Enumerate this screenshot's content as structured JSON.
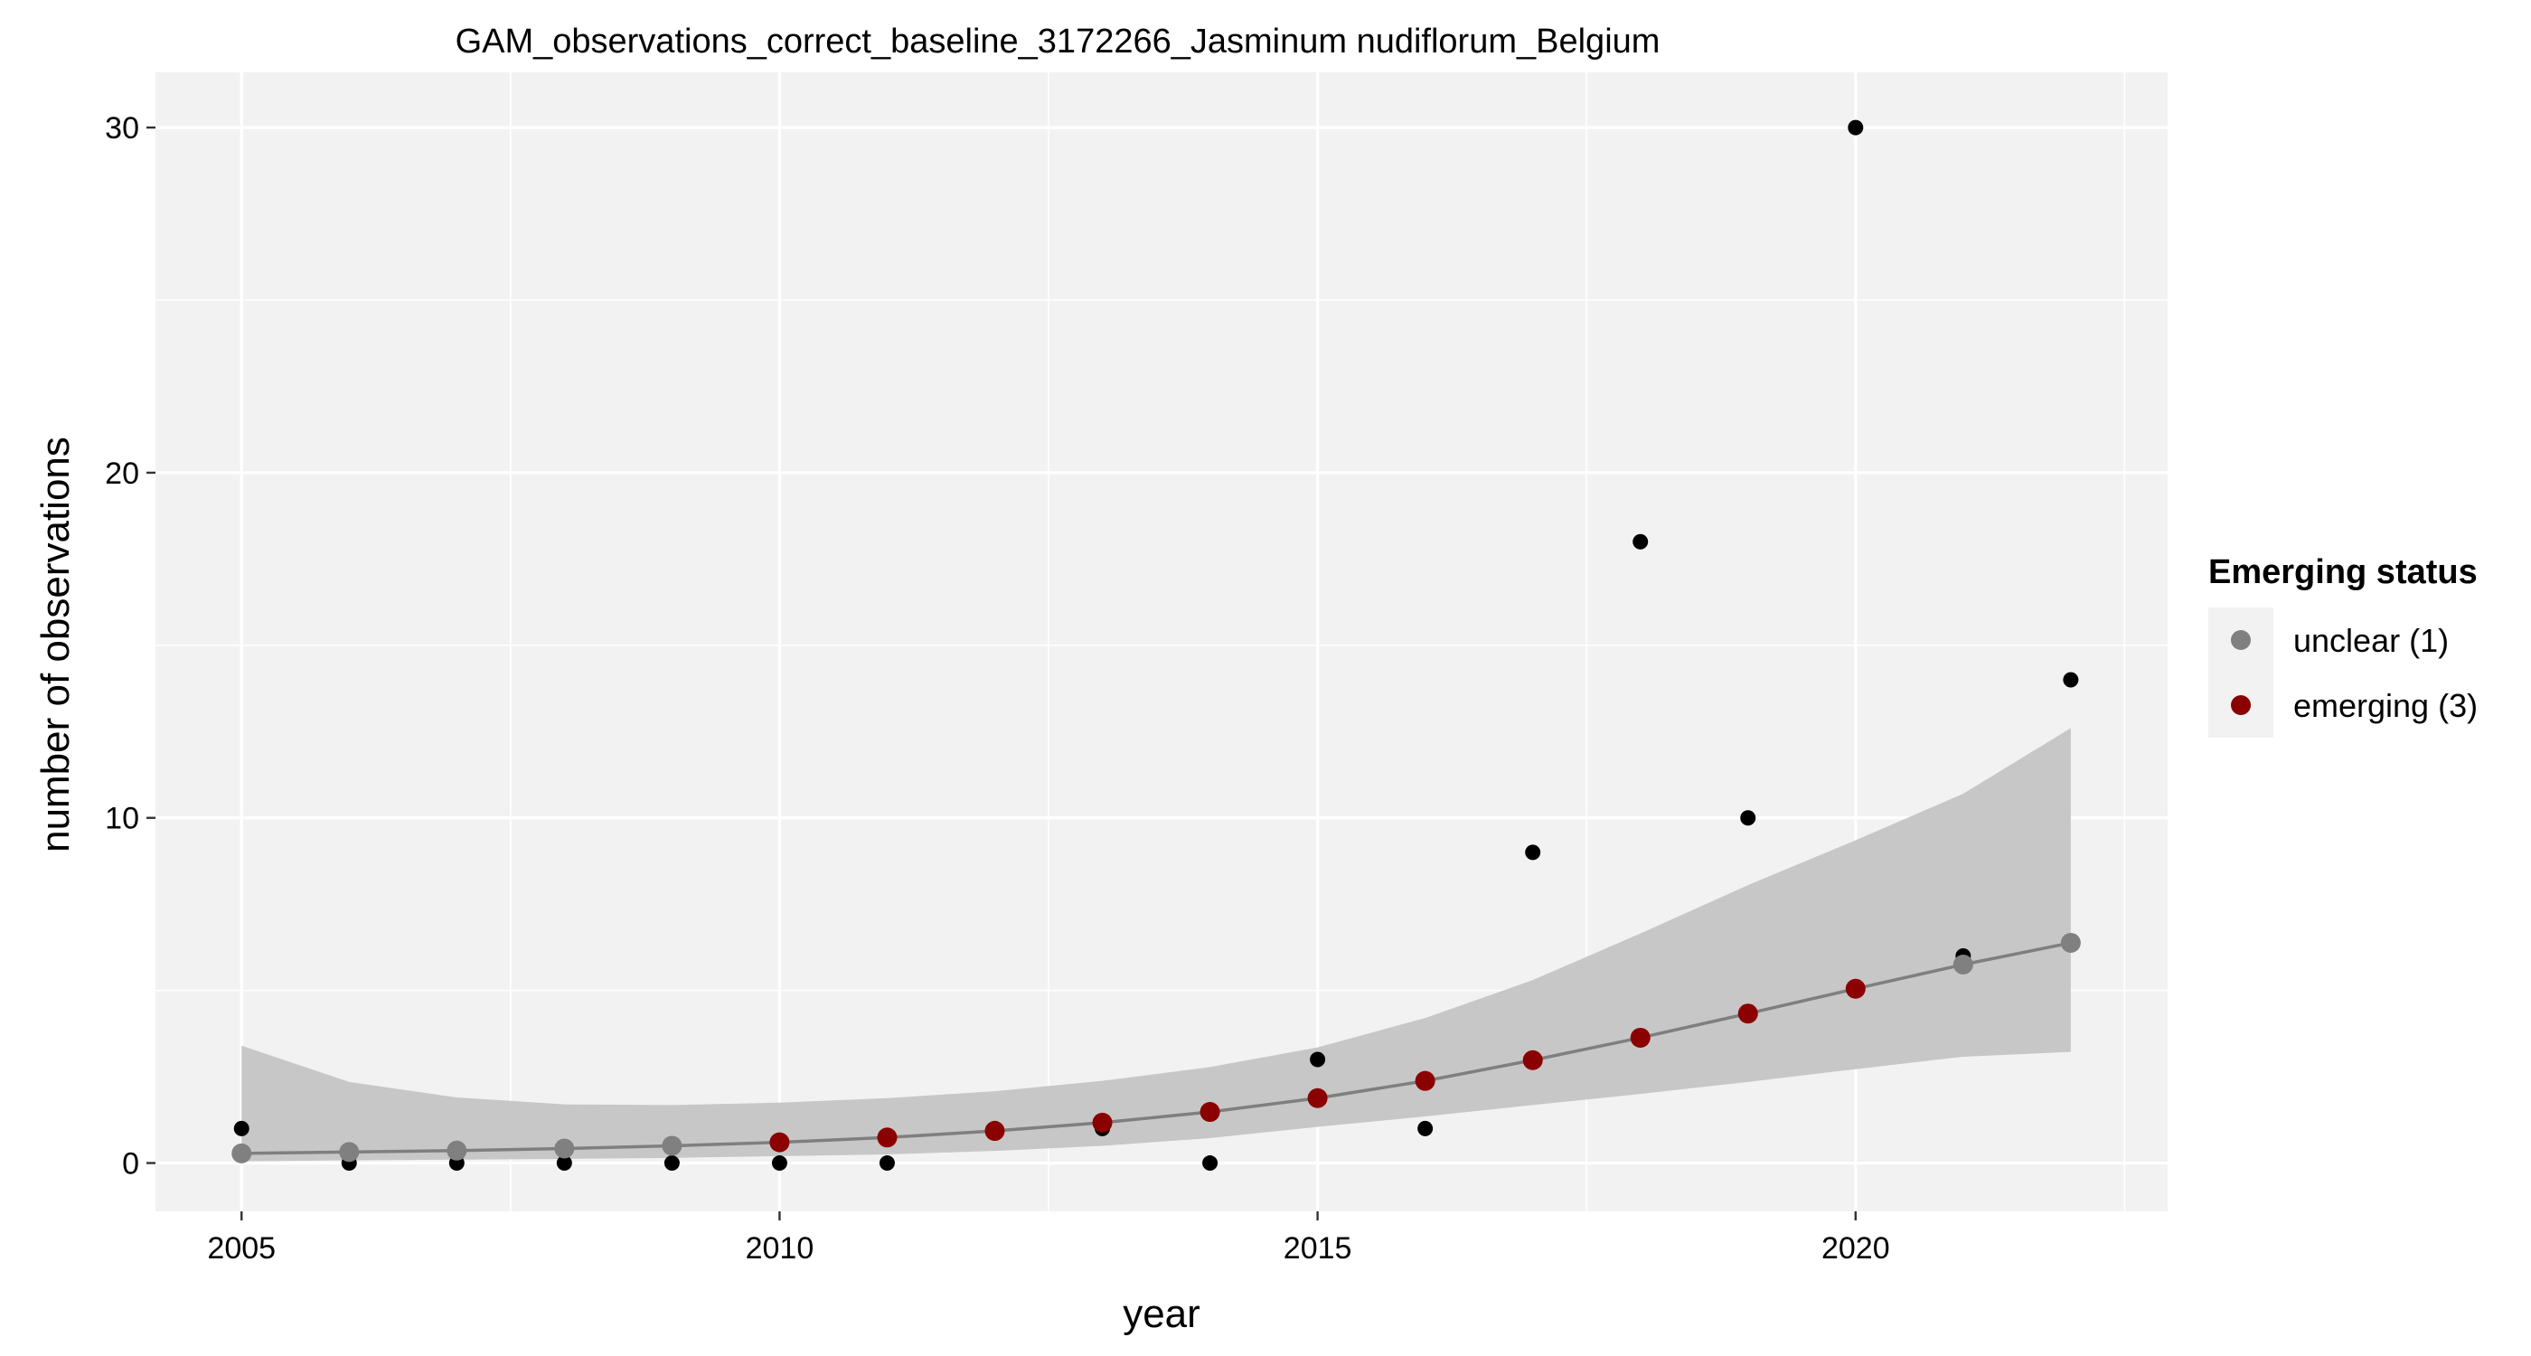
{
  "chart_data": {
    "type": "scatter",
    "title": "GAM_observations_correct_baseline_3172266_Jasminum nudiflorum_Belgium",
    "xlabel": "year",
    "ylabel": "number of observations",
    "xlim": [
      2004.2,
      2022.9
    ],
    "ylim": [
      -1.4,
      31.6
    ],
    "x_ticks": [
      2005,
      2010,
      2015,
      2020
    ],
    "y_ticks": [
      0,
      10,
      20,
      30
    ],
    "x_tick_labels": [
      "2005",
      "2010",
      "2015",
      "2020"
    ],
    "y_tick_labels": [
      "0",
      "10",
      "20",
      "30"
    ],
    "grid": true,
    "legend_position": "right",
    "observations": {
      "x": [
        2005,
        2006,
        2007,
        2008,
        2009,
        2010,
        2011,
        2012,
        2013,
        2014,
        2015,
        2016,
        2017,
        2018,
        2019,
        2020,
        2021,
        2022
      ],
      "y": [
        1,
        0,
        0,
        0,
        0,
        0,
        0,
        1,
        1,
        0,
        3,
        1,
        9,
        18,
        10,
        30,
        6,
        14
      ],
      "color": "#000000"
    },
    "fit": {
      "x": [
        2005,
        2006,
        2007,
        2008,
        2009,
        2010,
        2011,
        2012,
        2013,
        2014,
        2015,
        2016,
        2017,
        2018,
        2019,
        2020,
        2021,
        2022
      ],
      "y": [
        0.28,
        0.32,
        0.36,
        0.42,
        0.5,
        0.6,
        0.74,
        0.93,
        1.17,
        1.48,
        1.88,
        2.38,
        2.98,
        3.63,
        4.33,
        5.05,
        5.75,
        6.38
      ],
      "lower": [
        0.05,
        0.08,
        0.1,
        0.12,
        0.15,
        0.2,
        0.25,
        0.35,
        0.5,
        0.72,
        1.05,
        1.35,
        1.68,
        2.0,
        2.35,
        2.72,
        3.08,
        3.22
      ],
      "upper": [
        3.4,
        2.35,
        1.9,
        1.7,
        1.68,
        1.75,
        1.88,
        2.08,
        2.38,
        2.78,
        3.35,
        4.2,
        5.3,
        6.65,
        8.05,
        9.35,
        10.7,
        12.6
      ],
      "status": [
        "unclear (1)",
        "unclear (1)",
        "unclear (1)",
        "unclear (1)",
        "unclear (1)",
        "emerging (3)",
        "emerging (3)",
        "emerging (3)",
        "emerging (3)",
        "emerging (3)",
        "emerging (3)",
        "emerging (3)",
        "emerging (3)",
        "emerging (3)",
        "emerging (3)",
        "emerging (3)",
        "unclear (1)",
        "unclear (1)"
      ],
      "line_color": "#7f7f7f",
      "band_color": "#c4c4c4"
    },
    "legend": {
      "title": "Emerging status",
      "entries": [
        {
          "label": "unclear (1)",
          "color": "#808080"
        },
        {
          "label": "emerging (3)",
          "color": "#8b0000"
        }
      ]
    },
    "panel_background": "#f2f2f2",
    "grid_color": "#ffffff"
  }
}
